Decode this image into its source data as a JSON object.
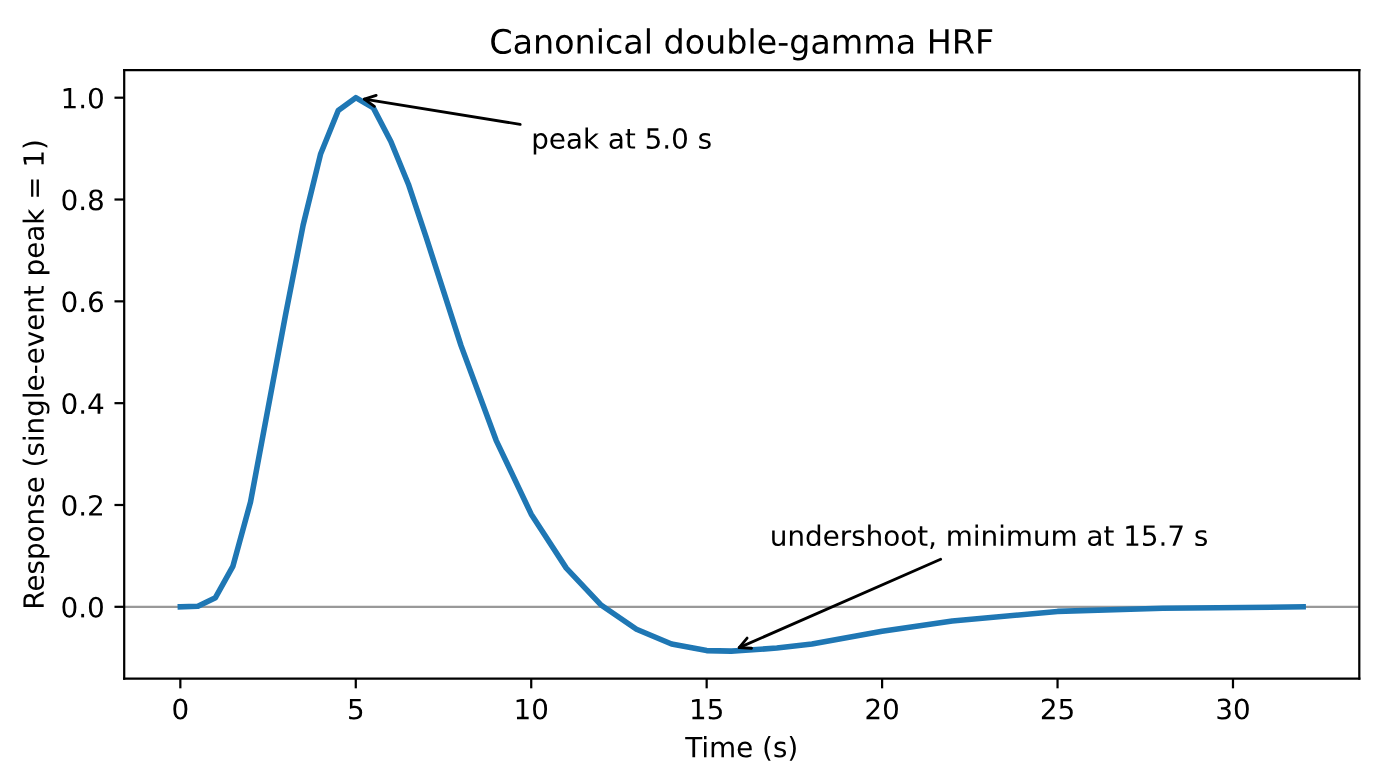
{
  "chart_data": {
    "type": "line",
    "title": "Canonical double-gamma HRF",
    "xlabel": "Time (s)",
    "ylabel": "Response (single-event peak = 1)",
    "x": [
      0,
      0.5,
      1,
      1.5,
      2,
      2.5,
      3,
      3.5,
      4,
      4.5,
      5,
      5.5,
      6,
      6.5,
      7,
      7.5,
      8,
      9,
      10,
      11,
      12,
      13,
      14,
      15,
      15.7,
      16,
      17,
      18,
      20,
      22,
      25,
      28,
      32
    ],
    "series": [
      {
        "color": "#1f77b4",
        "values": [
          0,
          0.001,
          0.018,
          0.08,
          0.206,
          0.39,
          0.574,
          0.75,
          0.89,
          0.975,
          1.0,
          0.98,
          0.914,
          0.83,
          0.727,
          0.62,
          0.513,
          0.327,
          0.182,
          0.076,
          0.003,
          -0.044,
          -0.073,
          -0.086,
          -0.087,
          -0.086,
          -0.081,
          -0.073,
          -0.048,
          -0.028,
          -0.009,
          -0.003,
          0
        ]
      }
    ],
    "xlim": [
      -1.6,
      33.6
    ],
    "ylim": [
      -0.141,
      1.054
    ],
    "xticks": [
      0,
      5,
      10,
      15,
      20,
      25,
      30
    ],
    "yticks": [
      {
        "value": 0,
        "label": "0.0"
      },
      {
        "value": 0.2,
        "label": "0.2"
      },
      {
        "value": 0.4,
        "label": "0.4"
      },
      {
        "value": 0.6,
        "label": "0.6"
      },
      {
        "value": 0.8,
        "label": "0.8"
      },
      {
        "value": 1,
        "label": "1.0"
      }
    ],
    "ref_lines": [
      {
        "axis": "y",
        "value": 0,
        "color": "#999999"
      }
    ],
    "annotations": [
      {
        "text": "peak at 5.0 s",
        "x": 5,
        "y": 1.0
      },
      {
        "text": "undershoot, minimum at 15.7 s",
        "x": 15.7,
        "y": -0.087
      }
    ],
    "grid": false,
    "legend": false,
    "marker": "none",
    "line_style": "solid"
  }
}
